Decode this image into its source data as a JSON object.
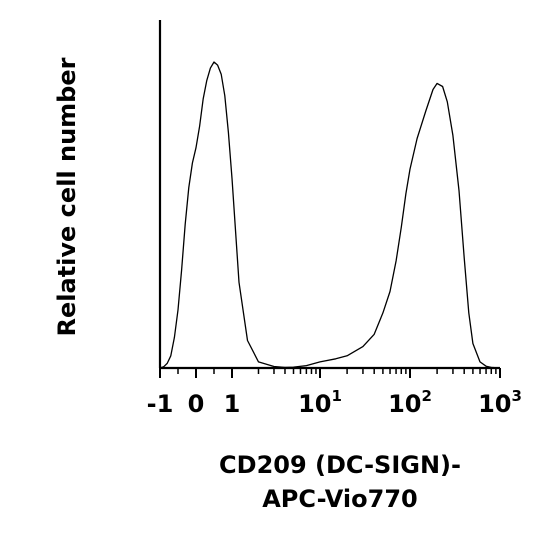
{
  "chart_data": {
    "type": "area",
    "title": "",
    "xlabel_line1": "CD209 (DC-SIGN)-",
    "xlabel_line2": "APC-Vio770",
    "ylabel": "Relative cell number",
    "x_scale": "biexponential",
    "xlim": [
      -1,
      1000
    ],
    "x_ticks": [
      {
        "value": -1,
        "base": "-1",
        "exp": ""
      },
      {
        "value": 0,
        "base": "0",
        "exp": ""
      },
      {
        "value": 1,
        "base": "1",
        "exp": ""
      },
      {
        "value": 10,
        "base": "10",
        "exp": "1"
      },
      {
        "value": 100,
        "base": "10",
        "exp": "2"
      },
      {
        "value": 1000,
        "base": "10",
        "exp": "3"
      }
    ],
    "grid": false,
    "legend": "none",
    "series": [
      {
        "x": [
          -1,
          -0.9,
          -0.8,
          -0.7,
          -0.6,
          -0.5,
          -0.4,
          -0.3,
          -0.2,
          -0.1,
          0,
          0.1,
          0.2,
          0.3,
          0.4,
          0.5,
          0.6,
          0.7,
          0.8,
          0.9,
          1,
          1.2,
          1.5,
          2,
          3,
          4,
          5,
          7,
          10,
          15,
          20,
          30,
          40,
          50,
          60,
          70,
          80,
          90,
          100,
          120,
          150,
          180,
          200,
          230,
          260,
          300,
          350,
          400,
          450,
          500,
          600,
          700,
          800,
          1000
        ],
        "y": [
          0,
          0.4,
          1.5,
          4,
          10,
          19,
          32,
          47,
          59,
          67,
          72,
          79,
          88,
          94,
          98,
          100,
          99,
          96,
          89,
          77,
          62,
          28,
          9,
          2,
          0.5,
          0.2,
          0.3,
          0.8,
          2,
          3,
          4,
          7,
          11,
          18,
          25,
          35,
          46,
          57,
          65,
          75,
          84,
          91,
          93,
          92,
          87,
          76,
          58,
          36,
          18,
          8,
          2,
          0.6,
          0.2,
          0
        ]
      }
    ]
  }
}
